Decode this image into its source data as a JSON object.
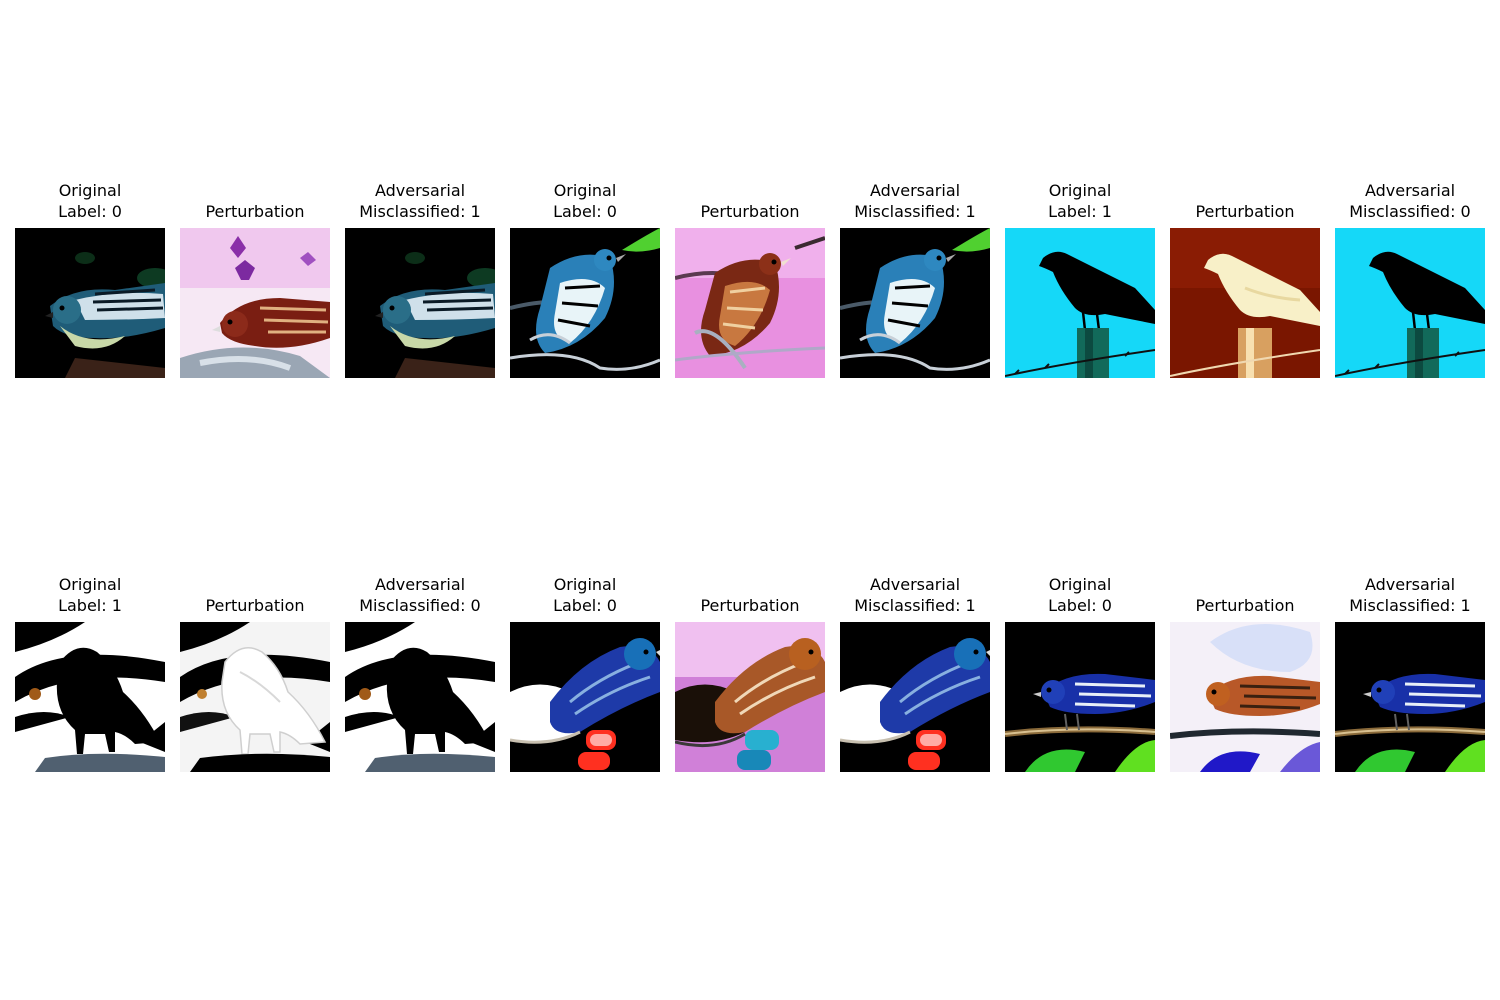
{
  "rows": [
    {
      "panels": [
        {
          "lines": [
            "Original",
            "Label: 0"
          ],
          "kind": "dark"
        },
        {
          "lines": [
            "Perturbation"
          ],
          "kind": "pert_pink"
        },
        {
          "lines": [
            "Adversarial",
            "Misclassified: 1"
          ],
          "kind": "dark"
        },
        {
          "lines": [
            "Original",
            "Label: 0"
          ],
          "kind": "dark_branch"
        },
        {
          "lines": [
            "Perturbation"
          ],
          "kind": "pert_magenta"
        },
        {
          "lines": [
            "Adversarial",
            "Misclassified: 1"
          ],
          "kind": "dark_branch"
        },
        {
          "lines": [
            "Original",
            "Label: 1"
          ],
          "kind": "cyan_silhouette"
        },
        {
          "lines": [
            "Perturbation"
          ],
          "kind": "pert_red"
        },
        {
          "lines": [
            "Adversarial",
            "Misclassified: 0"
          ],
          "kind": "cyan_silhouette"
        }
      ]
    },
    {
      "panels": [
        {
          "lines": [
            "Original",
            "Label: 1"
          ],
          "kind": "white_silhouette"
        },
        {
          "lines": [
            "Perturbation"
          ],
          "kind": "pert_white"
        },
        {
          "lines": [
            "Adversarial",
            "Misclassified: 0"
          ],
          "kind": "white_silhouette"
        },
        {
          "lines": [
            "Original",
            "Label: 0"
          ],
          "kind": "dark_hand"
        },
        {
          "lines": [
            "Perturbation"
          ],
          "kind": "pert_brown"
        },
        {
          "lines": [
            "Adversarial",
            "Misclassified: 1"
          ],
          "kind": "dark_hand"
        },
        {
          "lines": [
            "Original",
            "Label: 0"
          ],
          "kind": "dark_stick"
        },
        {
          "lines": [
            "Perturbation"
          ],
          "kind": "pert_light"
        },
        {
          "lines": [
            "Adversarial",
            "Misclassified: 1"
          ],
          "kind": "dark_stick"
        }
      ]
    }
  ]
}
